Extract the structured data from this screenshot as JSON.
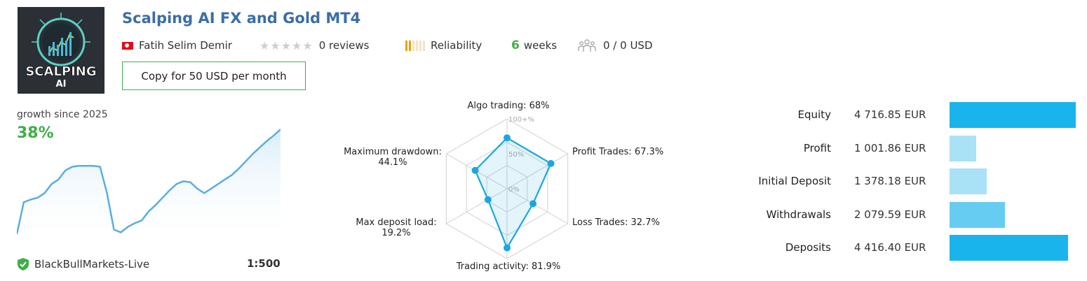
{
  "header": {
    "title": "Scalping AI FX and Gold MT4",
    "logo_text_top": "SCALPING",
    "logo_text_bottom": "AI",
    "author": "Fatih Selim Demir",
    "flag_icon": "turkey-flag-icon",
    "reviews_count_label": "0 reviews",
    "reliability_label": "Reliability",
    "reliability_level": 2,
    "weeks_num": "6",
    "weeks_label": "weeks",
    "subscribers_label": "0 / 0 USD",
    "copy_button": "Copy for 50 USD per month",
    "accent_green": "#3fae49",
    "accent_blue": "#3b6ea5"
  },
  "growth": {
    "label": "growth since 2025",
    "value": "38%",
    "broker": "BlackBullMarkets-Live",
    "leverage": "1:500",
    "line_color": "#5aaee0",
    "series": [
      0,
      0.35,
      0.38,
      0.4,
      0.45,
      0.55,
      0.6,
      0.7,
      0.74,
      0.75,
      0.75,
      0.75,
      0.74,
      0.45,
      0.05,
      0.02,
      0.08,
      0.12,
      0.15,
      0.25,
      0.32,
      0.4,
      0.48,
      0.55,
      0.58,
      0.57,
      0.5,
      0.45,
      0.5,
      0.55,
      0.6,
      0.65,
      0.72,
      0.8,
      0.88,
      0.95,
      1.02,
      1.08,
      1.15
    ]
  },
  "radar": {
    "grid_labels": [
      "100+%",
      "50%",
      "0%"
    ],
    "axes": [
      {
        "name": "Algo trading:",
        "value_text": "68%",
        "value": 68
      },
      {
        "name": "Profit Trades:",
        "value_text": "67.3%",
        "value": 67.3
      },
      {
        "name": "Loss Trades:",
        "value_text": "32.7%",
        "value": 32.7
      },
      {
        "name": "Trading activity:",
        "value_text": "81.9%",
        "value": 81.9
      },
      {
        "name": "Max deposit load:",
        "value_text": "19.2%",
        "value": 19.2
      },
      {
        "name": "Maximum drawdown:",
        "value_text": "44.1%",
        "value": 44.1
      }
    ],
    "color": "#1aa7e0"
  },
  "balances": [
    {
      "label": "Equity",
      "value": "4 716.85 EUR",
      "amount": 4716.85,
      "color": "#1ab4ed"
    },
    {
      "label": "Profit",
      "value": "1 001.86 EUR",
      "amount": 1001.86,
      "color": "#a9e1f7"
    },
    {
      "label": "Initial Deposit",
      "value": "1 378.18 EUR",
      "amount": 1378.18,
      "color": "#a9e1f7"
    },
    {
      "label": "Withdrawals",
      "value": "2 079.59 EUR",
      "amount": 2079.59,
      "color": "#66ccf1"
    },
    {
      "label": "Deposits",
      "value": "4 416.40 EUR",
      "amount": 4416.4,
      "color": "#1ab4ed"
    }
  ]
}
